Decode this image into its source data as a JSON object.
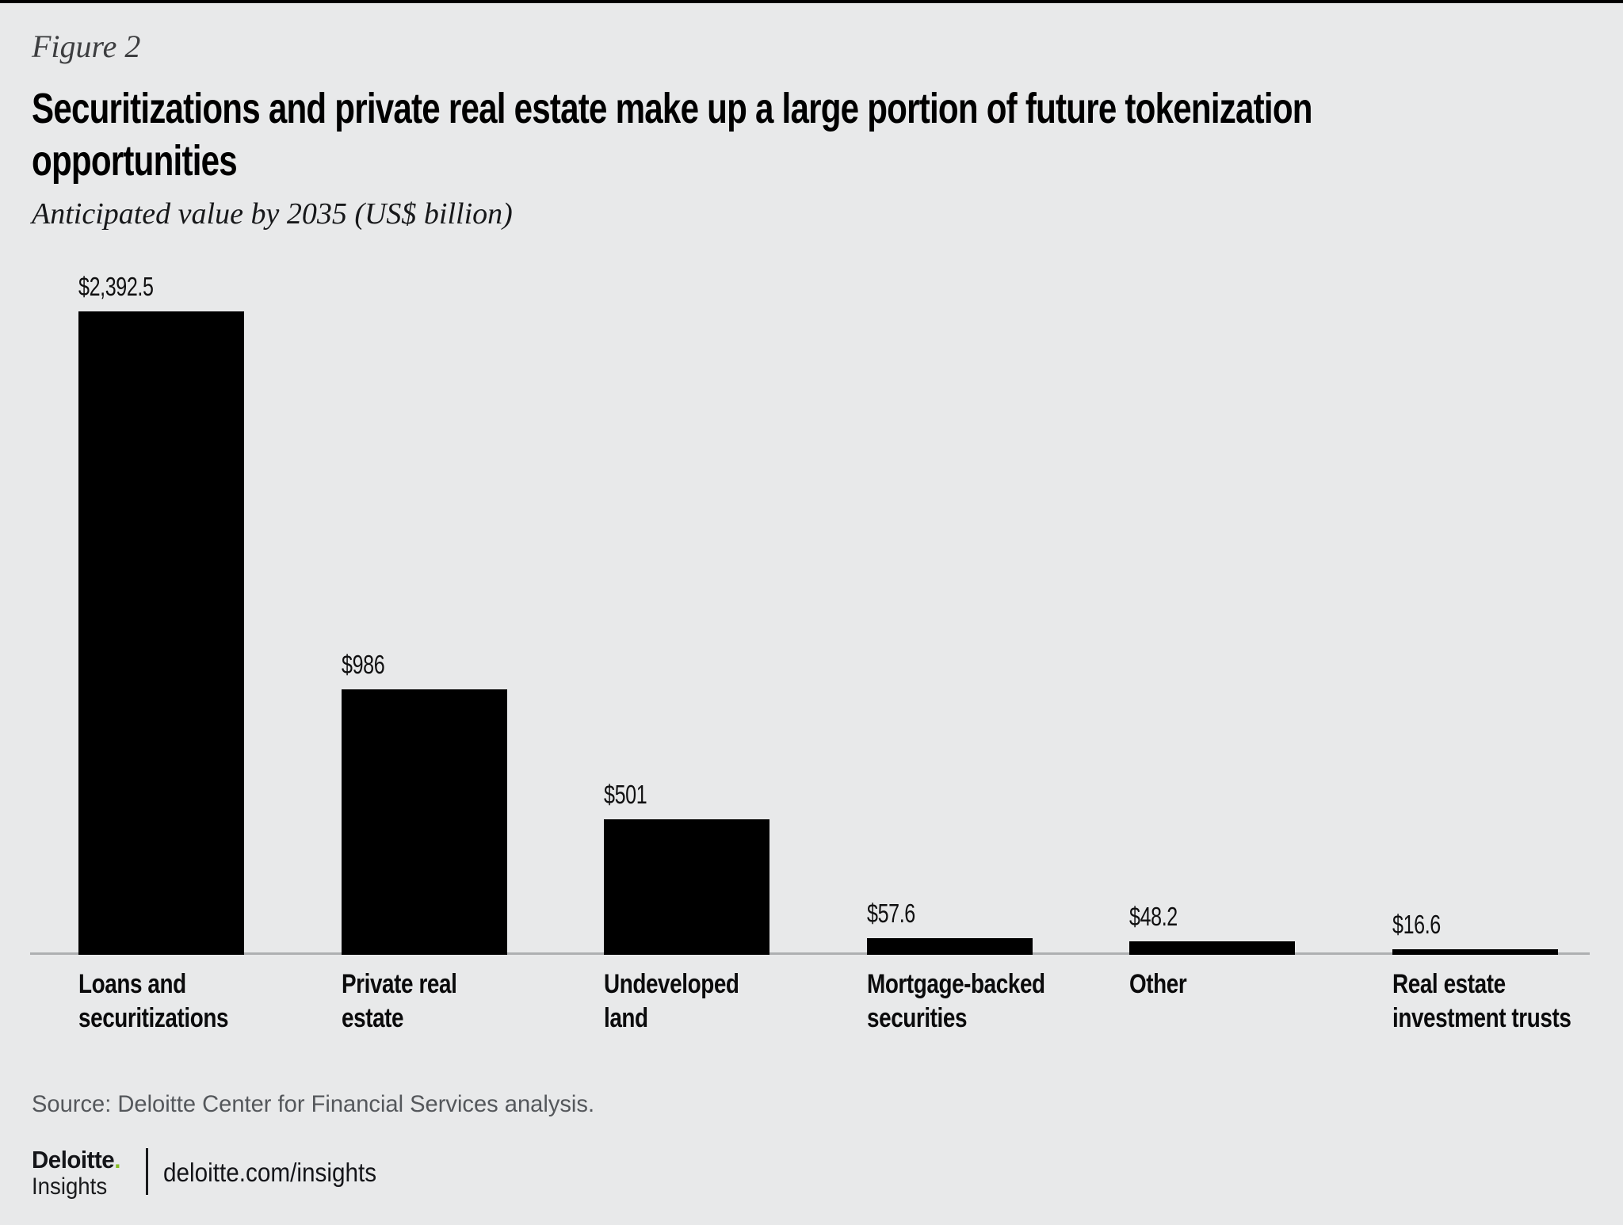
{
  "page": {
    "figure_label": "Figure 2",
    "title_lines": [
      "Securitizations and private real estate make up a large portion of future tokenization",
      "opportunities"
    ],
    "subtitle": "Anticipated value by 2035 (US$ billion)",
    "source": "Source: Deloitte Center for Financial Services analysis.",
    "brand": {
      "name": "Deloitte",
      "dot": ".",
      "sub": "Insights",
      "url": "deloitte.com/insights"
    }
  },
  "colors": {
    "background": "#E8E9EA",
    "top_accent": "#000000",
    "bar": "#000000",
    "axis_line": "#AEB0B2",
    "source_text": "#54575B",
    "brand_green": "#86BC25",
    "text": "#000000"
  },
  "chart_data": {
    "type": "bar",
    "title": "Securitizations and private real estate make up a large portion of future tokenization opportunities",
    "subtitle": "Anticipated value by 2035 (US$ billion)",
    "xlabel": "",
    "ylabel": "Anticipated value (US$ billion)",
    "categories": [
      "Loans and securitizations",
      "Private real estate",
      "Undeveloped land",
      "Mortgage-backed securities",
      "Other",
      "Real estate investment trusts"
    ],
    "category_lines": [
      [
        "Loans and",
        "securitizations"
      ],
      [
        "Private real",
        "estate"
      ],
      [
        "Undeveloped",
        "land"
      ],
      [
        "Mortgage-backed",
        "securities"
      ],
      [
        "Other"
      ],
      [
        "Real estate",
        "investment trusts"
      ]
    ],
    "values": [
      2392.5,
      986,
      501,
      57.6,
      48.2,
      16.6
    ],
    "value_labels": [
      "$2,392.5",
      "$986",
      "$501",
      "$57.6",
      "$48.2",
      "$16.6"
    ],
    "ylim": [
      0,
      2450
    ],
    "grid": false,
    "legend": false,
    "bar_color": "#000000",
    "value_label_position": "above-bar-left-aligned"
  }
}
